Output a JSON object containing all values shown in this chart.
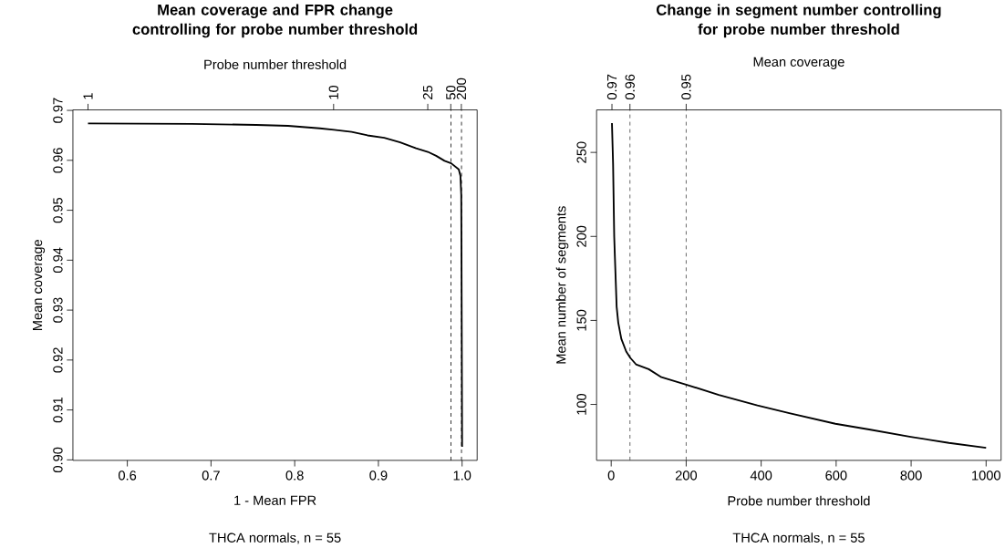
{
  "chart_data": [
    {
      "type": "line",
      "title": "Mean coverage and FPR change controlling for probe number threshold",
      "xlabel": "1 - Mean FPR",
      "ylabel": "Mean coverage",
      "x2label": "Probe number threshold",
      "annotations": [
        "THCA normals, n = 55",
        "1",
        "10",
        "25",
        "50",
        "200"
      ],
      "xlim": [
        0.535,
        1.018
      ],
      "ylim": [
        0.8999,
        0.9701
      ],
      "xticks": [
        0.6,
        0.7,
        0.8,
        0.9,
        {
          "value": 1.0,
          "label": "1.0"
        }
      ],
      "yticks": [
        {
          "value": 0.9,
          "label": "0.90"
        },
        0.91,
        0.92,
        0.93,
        0.94,
        0.95,
        0.96,
        0.97
      ],
      "ref_lines": [
        {
          "axis": "x",
          "value": 0.9867,
          "color": "#000000",
          "line_style": "dashed"
        },
        {
          "axis": "x",
          "value": 0.9993,
          "color": "#000000",
          "line_style": "dashed"
        }
      ],
      "series": [
        {
          "color": "#000000",
          "x": [
            0.553,
            0.677,
            0.754,
            0.792,
            0.83,
            0.847,
            0.868,
            0.887,
            0.907,
            0.926,
            0.945,
            0.959,
            0.969,
            0.979,
            0.987,
            0.996,
            0.998,
            0.999,
            0.9993,
            1.0
          ],
          "values": [
            0.9674,
            0.9673,
            0.9671,
            0.9669,
            0.9664,
            0.9661,
            0.9657,
            0.965,
            0.9645,
            0.9636,
            0.9624,
            0.9617,
            0.9609,
            0.9599,
            0.9594,
            0.9582,
            0.9569,
            0.9531,
            0.9405,
            0.9026
          ]
        }
      ]
    },
    {
      "type": "line",
      "title": "Change in segment number controlling for probe number threshold",
      "xlabel": "Probe number threshold",
      "ylabel": "Mean number of segments",
      "x2label": "Mean coverage",
      "annotations": [
        "THCA normals, n = 55",
        "0.97",
        "0.96",
        "0.95"
      ],
      "xlim": [
        -39,
        1040
      ],
      "ylim": [
        66.7,
        275.3
      ],
      "xticks": [
        0,
        200,
        400,
        600,
        800,
        1000
      ],
      "yticks": [
        100,
        150,
        200,
        250
      ],
      "ref_lines": [
        {
          "axis": "x",
          "value": 50,
          "color": "#444444",
          "line_style": "dashed"
        },
        {
          "axis": "x",
          "value": 200,
          "color": "#444444",
          "line_style": "dashed"
        }
      ],
      "series": [
        {
          "color": "#000000",
          "x": [
            2,
            5,
            8,
            10,
            14.5,
            18.8,
            27,
            40,
            51,
            66,
            100,
            134,
            200,
            287,
            390,
            475,
            598,
            688,
            799,
            901,
            1000
          ],
          "values": [
            267.5,
            243,
            200,
            186.8,
            158.2,
            148.7,
            139,
            131.5,
            127.7,
            123.9,
            121,
            116.2,
            111.8,
            105.7,
            99.4,
            94.8,
            88.5,
            85.1,
            80.7,
            77.1,
            74.2
          ]
        }
      ]
    }
  ]
}
